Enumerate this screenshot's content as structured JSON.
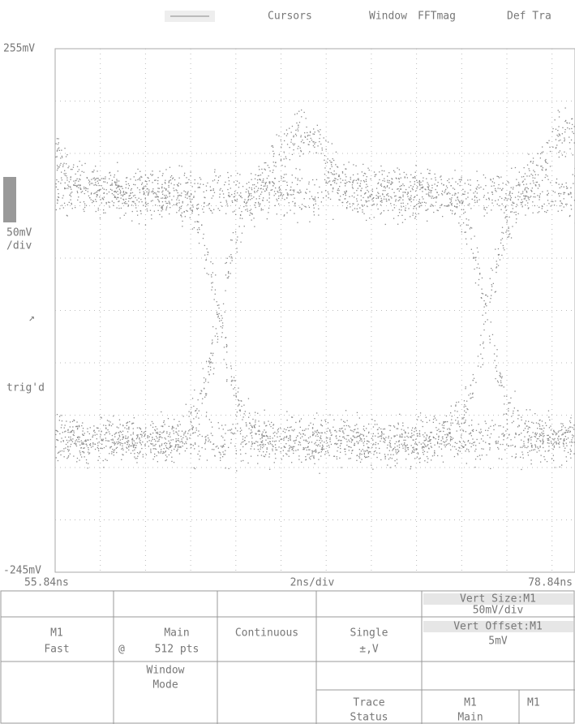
{
  "menu": [
    "Cursors",
    "Window",
    "FFTmag",
    "Def Tra"
  ],
  "display": {
    "top_level": "255mV",
    "scale": "50mV",
    "scale_unit": "/div",
    "trigger": "trig'd",
    "bottom_level": "-245mV",
    "time_start": "55.84ns",
    "time_scale": "2ns/div",
    "time_end": "78.84ns"
  },
  "softkeys": [
    [
      "M1",
      "Fast"
    ],
    [
      "@"
    ],
    [
      "Main",
      "512 pts"
    ],
    [
      "Continuous"
    ],
    [
      "Single",
      "±,V"
    ],
    [
      "Vert Size:M1",
      "50mV/div"
    ],
    [
      "Vert Offset:M1",
      "5mV"
    ],
    [
      "Window",
      "Mode"
    ],
    [
      "Trace",
      "Status"
    ],
    [
      "M1",
      "Main"
    ],
    [
      "M1"
    ]
  ]
}
